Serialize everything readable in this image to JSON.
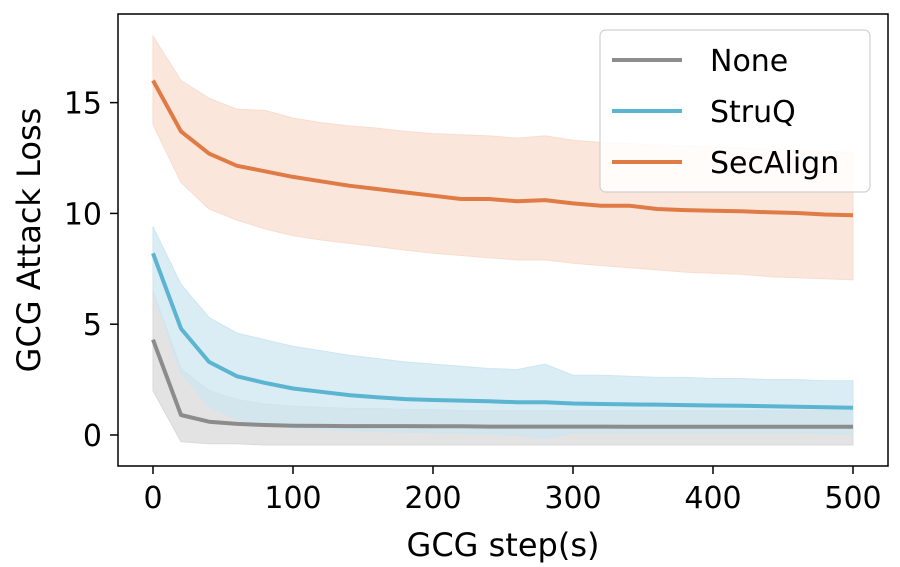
{
  "chart_data": {
    "type": "line",
    "xlabel": "GCG step(s)",
    "ylabel": "GCG Attack Loss",
    "xlim": [
      -25,
      525
    ],
    "ylim": [
      -1.4,
      19
    ],
    "xticks": [
      0,
      100,
      200,
      300,
      400,
      500
    ],
    "yticks": [
      0,
      5,
      10,
      15
    ],
    "grid": false,
    "legend_position": "top-right",
    "x": [
      0,
      20,
      40,
      60,
      80,
      100,
      120,
      140,
      160,
      180,
      200,
      220,
      240,
      260,
      280,
      300,
      320,
      340,
      360,
      380,
      400,
      420,
      440,
      460,
      480,
      500
    ],
    "series": [
      {
        "name": "None",
        "color": "#8c8c8c",
        "fill": "#d9d9d9",
        "values": [
          4.3,
          0.9,
          0.6,
          0.5,
          0.45,
          0.42,
          0.41,
          0.4,
          0.4,
          0.4,
          0.39,
          0.39,
          0.38,
          0.38,
          0.38,
          0.38,
          0.38,
          0.37,
          0.37,
          0.37,
          0.37,
          0.37,
          0.37,
          0.37,
          0.37,
          0.37
        ],
        "upper": [
          6.5,
          3.0,
          2.0,
          1.6,
          1.4,
          1.3,
          1.25,
          1.2,
          1.2,
          1.15,
          1.15,
          1.1,
          1.1,
          1.1,
          1.1,
          1.1,
          1.1,
          1.1,
          1.1,
          1.1,
          1.1,
          1.1,
          1.1,
          1.1,
          1.1,
          1.1
        ],
        "lower": [
          2.0,
          -0.3,
          -0.4,
          -0.4,
          -0.45,
          -0.45,
          -0.45,
          -0.45,
          -0.45,
          -0.45,
          -0.45,
          -0.45,
          -0.45,
          -0.45,
          -0.45,
          -0.45,
          -0.45,
          -0.45,
          -0.45,
          -0.45,
          -0.45,
          -0.45,
          -0.45,
          -0.45,
          -0.45,
          -0.45
        ]
      },
      {
        "name": "StruQ",
        "color": "#5bb4d0",
        "fill": "#cde6f0",
        "values": [
          8.2,
          4.8,
          3.3,
          2.65,
          2.35,
          2.1,
          1.95,
          1.8,
          1.7,
          1.62,
          1.58,
          1.55,
          1.52,
          1.48,
          1.48,
          1.42,
          1.4,
          1.38,
          1.37,
          1.35,
          1.33,
          1.32,
          1.3,
          1.27,
          1.25,
          1.23
        ],
        "upper": [
          9.4,
          6.8,
          5.3,
          4.6,
          4.3,
          4.0,
          3.8,
          3.6,
          3.45,
          3.3,
          3.2,
          3.1,
          3.0,
          2.95,
          3.2,
          2.7,
          2.7,
          2.65,
          2.6,
          2.6,
          2.55,
          2.55,
          2.5,
          2.5,
          2.45,
          2.45
        ],
        "lower": [
          6.5,
          2.8,
          1.3,
          0.7,
          0.45,
          0.3,
          0.25,
          0.2,
          0.15,
          0.12,
          0.1,
          0.08,
          0.05,
          0.0,
          -0.15,
          0.1,
          0.1,
          0.1,
          0.1,
          0.1,
          0.1,
          0.1,
          0.1,
          0.1,
          0.05,
          0.05
        ]
      },
      {
        "name": "SecAlign",
        "color": "#e07b45",
        "fill": "#f8ddcf",
        "values": [
          16.0,
          13.7,
          12.7,
          12.15,
          11.9,
          11.65,
          11.45,
          11.25,
          11.1,
          10.95,
          10.8,
          10.65,
          10.65,
          10.55,
          10.6,
          10.45,
          10.35,
          10.35,
          10.2,
          10.15,
          10.12,
          10.1,
          10.05,
          10.02,
          9.95,
          9.92
        ],
        "upper": [
          18.0,
          16.0,
          15.2,
          14.7,
          14.65,
          14.3,
          14.1,
          13.95,
          13.85,
          13.7,
          13.6,
          13.55,
          13.5,
          13.4,
          13.5,
          13.3,
          13.2,
          13.15,
          13.1,
          13.05,
          13.0,
          12.95,
          12.9,
          12.85,
          12.8,
          12.75
        ],
        "lower": [
          14.0,
          11.4,
          10.2,
          9.7,
          9.3,
          9.0,
          8.8,
          8.65,
          8.5,
          8.35,
          8.2,
          8.1,
          8.0,
          7.9,
          7.9,
          7.75,
          7.65,
          7.55,
          7.45,
          7.35,
          7.3,
          7.25,
          7.15,
          7.1,
          7.05,
          7.0
        ]
      }
    ]
  }
}
